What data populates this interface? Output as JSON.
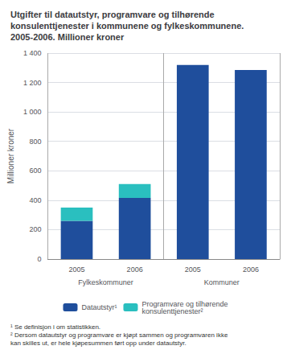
{
  "chart_data": {
    "type": "bar",
    "title": "Utgifter til datautstyr, programvare og tilhørende\nkonsulenttjenester i kommunene og fylkeskommunene.\n2005-2006. Millioner kroner",
    "ylabel": "Millioner kroner",
    "categories": [
      "2005",
      "2006",
      "2005",
      "2006"
    ],
    "groups": [
      "Fylkeskommuner",
      "Kommuner"
    ],
    "series": [
      {
        "name": "Datautstyr¹",
        "color": "#1F4E9C",
        "values": [
          260,
          415,
          1320,
          1285
        ]
      },
      {
        "name": "Programvare og tilhørende\nkonsulenttjenester²",
        "color": "#2ABFBF",
        "values": [
          90,
          95,
          0,
          0
        ]
      }
    ],
    "stacked": true,
    "ylim": [
      0,
      1400
    ],
    "yticks": [
      0,
      200,
      400,
      600,
      800,
      {
        "value": 1000,
        "label": "1 000"
      },
      {
        "value": 1200,
        "label": "1 200"
      },
      {
        "value": 1400,
        "label": "1 400"
      }
    ],
    "grid": true,
    "legend": "bottom",
    "footnotes": [
      "¹ Se definisjon i om statistikken.",
      "² Dersom datautstyr og programvare er kjøpt sammen og programvaren ikke\nkan skilles ut, er hele kjøpesummen ført opp under datautstyr."
    ]
  }
}
